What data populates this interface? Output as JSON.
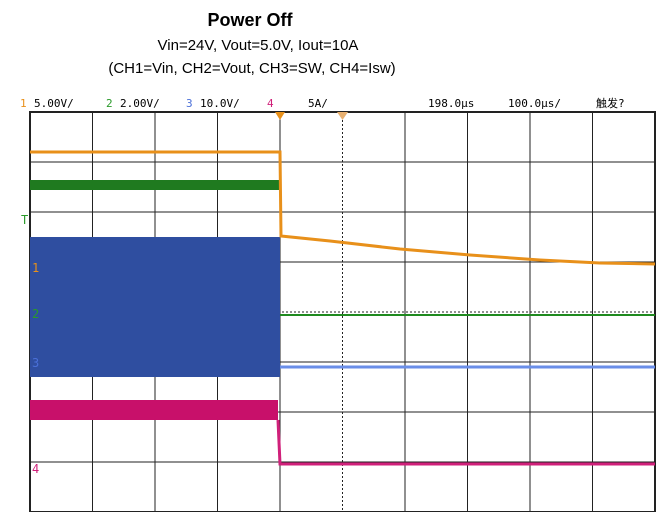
{
  "header": {
    "title": "Power Off",
    "subtitle": "Vin=24V, Vout=5.0V, Iout=10A",
    "channels_note": "(CH1=Vin, CH2=Vout, CH3=SW, CH4=Isw)"
  },
  "scope_bar": {
    "ch1": "1",
    "ch1_scale": "5.00V/",
    "ch2": "2",
    "ch2_scale": "2.00V/",
    "ch3": "3",
    "ch3_scale": "10.0V/",
    "ch4": "4",
    "ch4_scale": "5A/",
    "delay": "198.0μs",
    "timebase": "100.0μs/",
    "trigger": "触发?"
  },
  "markers": {
    "trigger": "T",
    "ch1": "1",
    "ch2": "2",
    "ch3": "3",
    "ch4": "4"
  }
}
